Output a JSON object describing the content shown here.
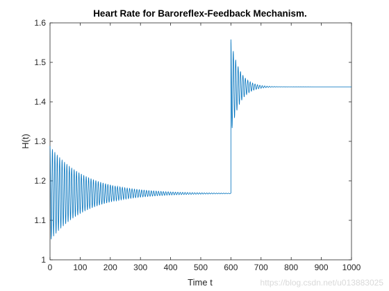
{
  "chart_data": {
    "type": "line",
    "title": "Heart Rate for Baroreflex-Feedback Mechanism.",
    "xlabel": "Time t",
    "ylabel": "H(t)",
    "xlim": [
      0,
      1000
    ],
    "ylim": [
      1,
      1.6
    ],
    "xticks": [
      0,
      100,
      200,
      300,
      400,
      500,
      600,
      700,
      800,
      900,
      1000
    ],
    "xtick_labels": [
      "0",
      "100",
      "200",
      "300",
      "400",
      "500",
      "600",
      "700",
      "800",
      "900",
      "1000"
    ],
    "yticks": [
      1,
      1.1,
      1.2,
      1.3,
      1.4,
      1.5,
      1.6
    ],
    "ytick_labels": [
      "1",
      "1.1",
      "1.2",
      "1.3",
      "1.4",
      "1.5",
      "1.6"
    ],
    "grid": false,
    "line_color": "#0072bd",
    "series": [
      {
        "description": "Damped oscillation around 1.17 (initial amplitude ~0.12), settling near t~300; step at t~600 to damped oscillation around 1.44 (overshoot to ~1.56), settling near t~700",
        "segments": [
          {
            "t_start": 0,
            "t_end": 600,
            "equilibrium": 1.168,
            "initial_amplitude": 0.12,
            "decay_rate": 0.0085,
            "period": 8
          },
          {
            "t_start": 600,
            "t_end": 1000,
            "equilibrium": 1.438,
            "initial_amplitude": 0.12,
            "decay_rate": 0.035,
            "period": 8
          }
        ]
      }
    ]
  },
  "watermark": "https://blog.csdn.net/u013883025"
}
